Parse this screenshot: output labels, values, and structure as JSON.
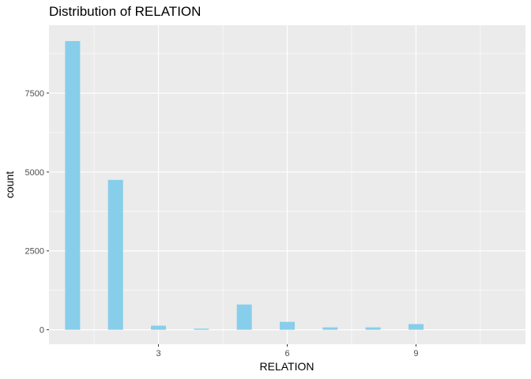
{
  "chart_data": {
    "type": "bar",
    "title": "Distribution of RELATION",
    "xlabel": "RELATION",
    "ylabel": "count",
    "x": [
      1,
      2,
      3,
      4,
      5,
      6,
      7,
      8,
      9
    ],
    "values": [
      9150,
      4750,
      130,
      35,
      800,
      250,
      75,
      75,
      180
    ],
    "xlim": [
      0.45,
      11.55
    ],
    "ylim": [
      -460,
      9650
    ],
    "xticks": [
      3,
      6,
      9
    ],
    "xtick_labels": [
      "3",
      "6",
      "9"
    ],
    "yticks": [
      0,
      2500,
      5000,
      7500
    ],
    "ytick_labels": [
      "0",
      "2500",
      "5000",
      "7500"
    ],
    "bar_color": "#87CEEB",
    "panel_background": "#EBEBEB",
    "grid": true,
    "legend": "none"
  }
}
